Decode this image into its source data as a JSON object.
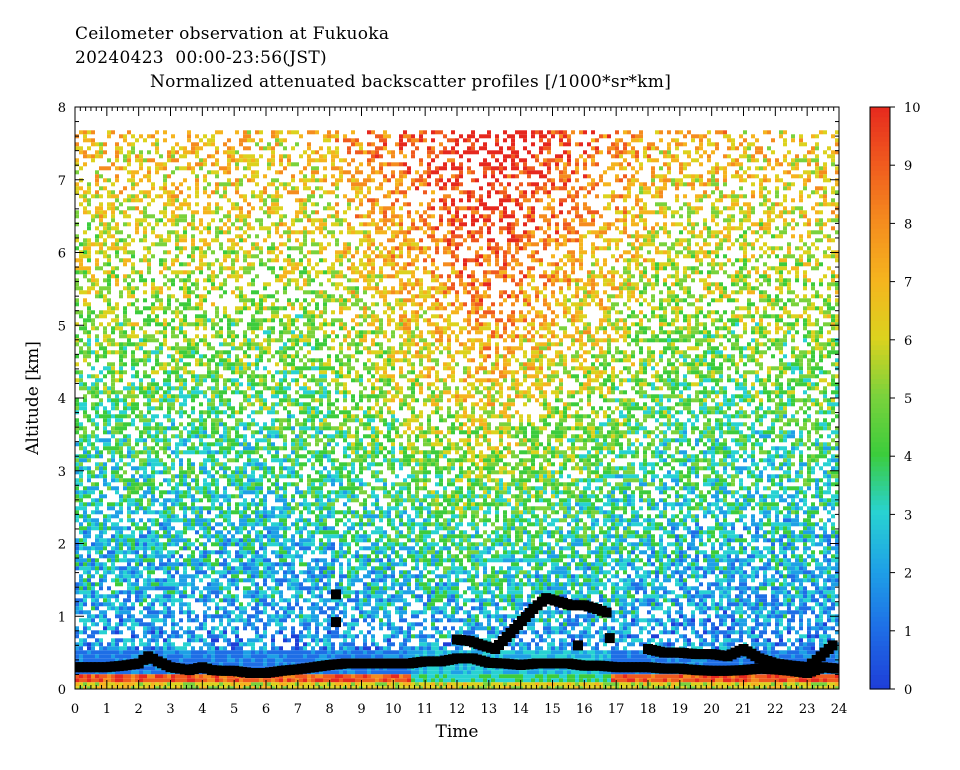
{
  "header": {
    "line1": "Ceilometer observation at Fukuoka",
    "line2": "20240423  00:00-23:56(JST)",
    "line3": "Normalized attenuated backscatter profiles [/1000*sr*km]"
  },
  "chart_data": {
    "type": "heatmap",
    "xlabel": "Time",
    "ylabel": "Altitude [km]",
    "xlim": [
      0,
      24
    ],
    "ylim": [
      0,
      8
    ],
    "x_ticks": [
      "0",
      "1",
      "2",
      "3",
      "4",
      "5",
      "6",
      "7",
      "8",
      "9",
      "10",
      "11",
      "12",
      "13",
      "14",
      "15",
      "16",
      "17",
      "18",
      "19",
      "20",
      "21",
      "22",
      "23",
      "24"
    ],
    "y_ticks": [
      "0",
      "1",
      "2",
      "3",
      "4",
      "5",
      "6",
      "7",
      "8"
    ],
    "data_top_altitude_km": 7.68,
    "colorbar": {
      "range": [
        0,
        10
      ],
      "ticks": [
        "0",
        "1",
        "2",
        "3",
        "4",
        "5",
        "6",
        "7",
        "8",
        "9",
        "10"
      ],
      "colors": [
        "#1e3fd8",
        "#1e6ee6",
        "#1ea0e6",
        "#28d2d2",
        "#3ccc3c",
        "#7ad23c",
        "#dcd21e",
        "#f5b41e",
        "#f58c1e",
        "#f05a1e",
        "#e6281e"
      ]
    },
    "series": [
      {
        "points": [
          [
            0.0,
            0.3
          ],
          [
            0.5,
            0.3
          ],
          [
            1.0,
            0.3
          ],
          [
            1.5,
            0.32
          ],
          [
            2.0,
            0.35
          ],
          [
            2.3,
            0.45
          ],
          [
            2.6,
            0.38
          ],
          [
            3.0,
            0.3
          ],
          [
            3.3,
            0.28
          ],
          [
            3.6,
            0.26
          ],
          [
            4.0,
            0.3
          ],
          [
            4.3,
            0.26
          ],
          [
            4.6,
            0.25
          ],
          [
            5.0,
            0.25
          ],
          [
            5.5,
            0.22
          ],
          [
            6.0,
            0.22
          ],
          [
            6.5,
            0.25
          ],
          [
            7.0,
            0.27
          ],
          [
            7.5,
            0.3
          ],
          [
            8.0,
            0.33
          ],
          [
            8.5,
            0.35
          ],
          [
            9.0,
            0.35
          ],
          [
            9.5,
            0.35
          ],
          [
            10.0,
            0.35
          ],
          [
            10.5,
            0.35
          ],
          [
            11.0,
            0.38
          ],
          [
            11.5,
            0.38
          ],
          [
            12.0,
            0.42
          ],
          [
            12.5,
            0.42
          ],
          [
            13.0,
            0.36
          ],
          [
            13.5,
            0.35
          ],
          [
            14.0,
            0.33
          ],
          [
            14.5,
            0.35
          ],
          [
            15.0,
            0.35
          ],
          [
            15.5,
            0.35
          ],
          [
            16.0,
            0.32
          ],
          [
            16.5,
            0.32
          ],
          [
            17.0,
            0.3
          ],
          [
            17.5,
            0.3
          ],
          [
            18.0,
            0.3
          ],
          [
            18.5,
            0.28
          ],
          [
            19.0,
            0.28
          ],
          [
            19.5,
            0.26
          ],
          [
            20.0,
            0.25
          ],
          [
            20.5,
            0.25
          ],
          [
            21.0,
            0.26
          ],
          [
            21.5,
            0.28
          ],
          [
            22.0,
            0.27
          ],
          [
            22.5,
            0.25
          ],
          [
            23.0,
            0.22
          ],
          [
            23.5,
            0.3
          ],
          [
            23.9,
            0.28
          ]
        ]
      },
      {
        "points": [
          [
            8.2,
            1.3
          ],
          [
            8.2,
            0.92
          ],
          [
            12.0,
            0.68
          ],
          [
            12.4,
            0.66
          ],
          [
            12.8,
            0.6
          ],
          [
            13.2,
            0.55
          ],
          [
            14.4,
            1.1
          ],
          [
            14.8,
            1.25
          ],
          [
            15.2,
            1.2
          ],
          [
            15.6,
            1.15
          ],
          [
            16.0,
            1.15
          ],
          [
            16.4,
            1.1
          ],
          [
            16.7,
            1.05
          ],
          [
            16.8,
            0.7
          ],
          [
            15.8,
            0.6
          ],
          [
            18.0,
            0.55
          ],
          [
            18.5,
            0.5
          ],
          [
            19.0,
            0.5
          ],
          [
            19.5,
            0.48
          ],
          [
            20.0,
            0.48
          ],
          [
            20.5,
            0.45
          ],
          [
            21.0,
            0.55
          ],
          [
            21.5,
            0.42
          ],
          [
            22.0,
            0.35
          ],
          [
            22.5,
            0.32
          ],
          [
            23.0,
            0.3
          ],
          [
            23.3,
            0.4
          ],
          [
            23.8,
            0.6
          ]
        ]
      }
    ]
  }
}
